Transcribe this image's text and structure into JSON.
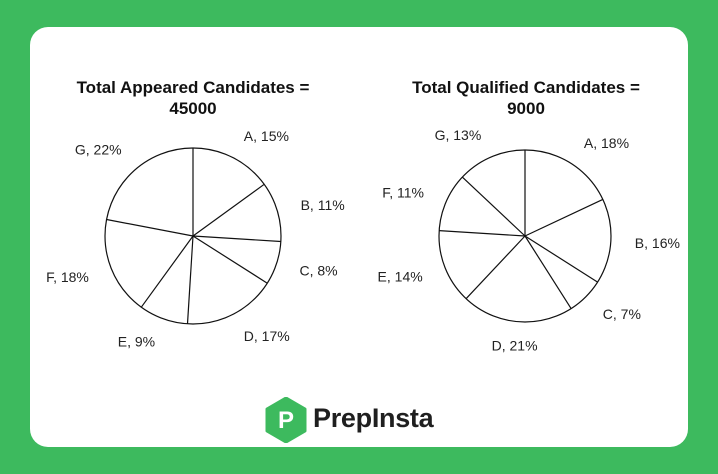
{
  "colors": {
    "background": "#3dba5e",
    "card": "#ffffff",
    "brand_green": "#3dba5e",
    "ink": "#111111"
  },
  "brand": {
    "name": "PrepInsta",
    "logo_letter": "P",
    "icon": "prepinsta-logo-icon"
  },
  "chart_data": [
    {
      "type": "pie",
      "title_lines": [
        "Total Appeared Candidates =",
        "45000"
      ],
      "title": "Total Appeared Candidates = 45000",
      "categories": [
        "A",
        "B",
        "C",
        "D",
        "E",
        "F",
        "G"
      ],
      "values": [
        15,
        11,
        8,
        17,
        9,
        18,
        22
      ],
      "labels": [
        "A, 15%",
        "B, 11%",
        "C, 8%",
        "D, 17%",
        "E, 9%",
        "F, 18%",
        "G, 22%"
      ],
      "unit": "%",
      "total": 45000
    },
    {
      "type": "pie",
      "title_lines": [
        "Total Qualified Candidates =",
        "9000"
      ],
      "title": "Total Qualified Candidates = 9000",
      "categories": [
        "A",
        "B",
        "C",
        "D",
        "E",
        "F",
        "G"
      ],
      "values": [
        18,
        16,
        7,
        21,
        14,
        11,
        13
      ],
      "labels": [
        "A, 18%",
        "B, 16%",
        "C, 7%",
        "D, 21%",
        "E, 14%",
        "F, 11%",
        "G, 13%"
      ],
      "unit": "%",
      "total": 9000
    }
  ]
}
